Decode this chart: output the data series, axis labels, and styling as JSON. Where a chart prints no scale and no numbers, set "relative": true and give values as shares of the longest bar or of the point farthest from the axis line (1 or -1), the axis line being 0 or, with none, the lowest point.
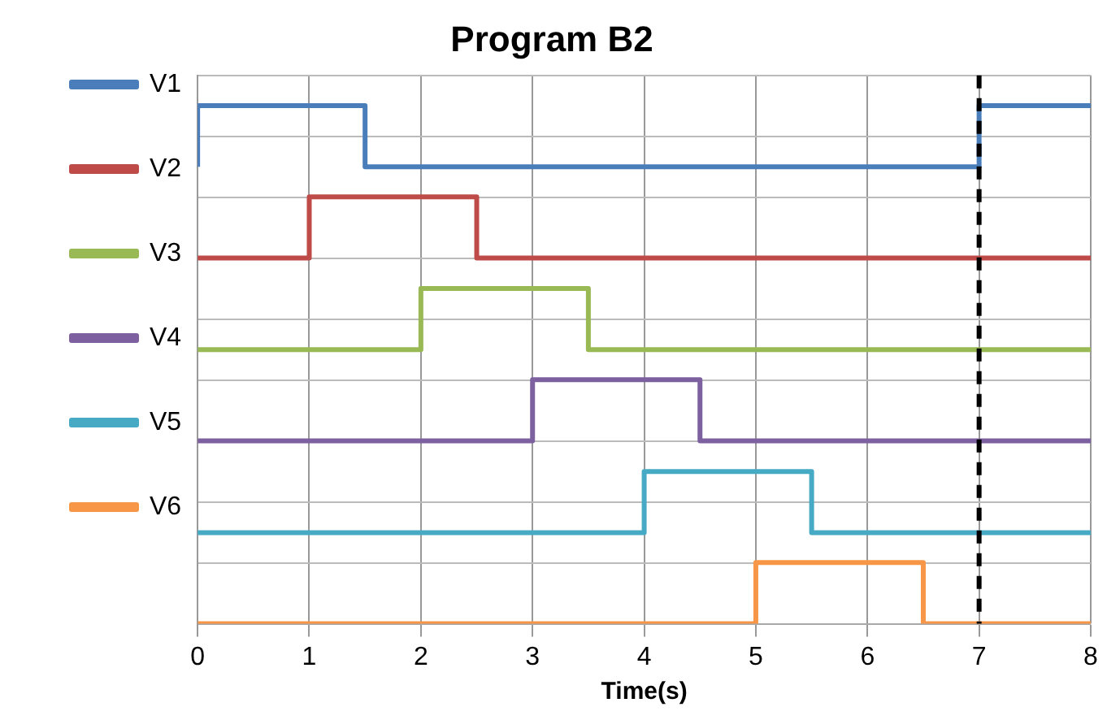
{
  "chart_data": {
    "type": "step",
    "title": "Program B2",
    "xlabel": "Time(s)",
    "relative": true,
    "xlim": [
      0,
      8
    ],
    "xticks": [
      0,
      1,
      2,
      3,
      4,
      5,
      6,
      7,
      8
    ],
    "grid": true,
    "legend": "left",
    "marker": "none",
    "line_style": "solid",
    "series": [
      {
        "name": "V1",
        "color": "#4a7ebb",
        "x": [
          0,
          0,
          1.5,
          7,
          8
        ],
        "values": [
          0.882,
          1,
          0.882,
          1,
          1
        ]
      },
      {
        "name": "V2",
        "color": "#be4b48",
        "x": [
          0,
          1,
          2.5,
          8
        ],
        "values": [
          0.706,
          0.824,
          0.706,
          0.706
        ]
      },
      {
        "name": "V3",
        "color": "#98b954",
        "x": [
          0,
          2,
          3.5,
          8
        ],
        "values": [
          0.529,
          0.647,
          0.529,
          0.529
        ]
      },
      {
        "name": "V4",
        "color": "#7d60a0",
        "x": [
          0,
          3,
          4.5,
          8
        ],
        "values": [
          0.353,
          0.471,
          0.353,
          0.353
        ]
      },
      {
        "name": "V5",
        "color": "#46aac5",
        "x": [
          0,
          4,
          5.5,
          8
        ],
        "values": [
          0.176,
          0.294,
          0.176,
          0.176
        ]
      },
      {
        "name": "V6",
        "color": "#f79646",
        "x": [
          0,
          5,
          6.5,
          8
        ],
        "values": [
          0,
          0.118,
          0,
          0
        ]
      }
    ],
    "ref_lines": [
      {
        "axis": "x",
        "value": 7,
        "color": "#000000",
        "line_style": "dashed"
      }
    ]
  }
}
